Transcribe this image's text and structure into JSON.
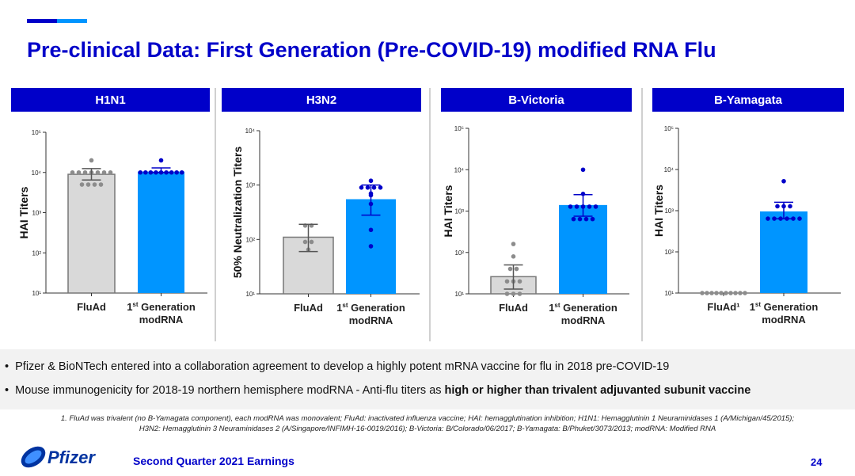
{
  "title": "Pre-clinical Data: First Generation (Pre-COVID-19) modified RNA Flu",
  "colors": {
    "brand": "#0000c9",
    "accent": "#0095ff",
    "fluad_bar": "#d9d9d9",
    "fluad_dot": "#8c8c8c",
    "modrna_dot": "#0000c9"
  },
  "chart_data": [
    {
      "type": "bar",
      "title": "H1N1",
      "ylabel": "HAI Titers",
      "yscale": "log",
      "ylim": [
        10,
        100000
      ],
      "yticks": [
        "10¹",
        "10²",
        "10³",
        "10⁴",
        "10⁵"
      ],
      "categories": [
        "FluAd",
        "1st Generation modRNA"
      ],
      "bars": [
        {
          "name": "FluAd",
          "value": 9000,
          "err": [
            6500,
            12500
          ],
          "points": [
            20000,
            10000,
            10000,
            10000,
            10000,
            10000,
            10000,
            10000,
            5000,
            5000,
            5000,
            5000
          ]
        },
        {
          "name": "1st Generation modRNA",
          "value": 10500,
          "err": [
            10000,
            13000
          ],
          "points": [
            20000,
            10000,
            10000,
            10000,
            10000,
            10000,
            10000,
            10000,
            10000,
            10000
          ]
        }
      ]
    },
    {
      "type": "bar",
      "title": "H3N2",
      "ylabel": "50% Neutralization Titers",
      "yscale": "log",
      "ylim": [
        10,
        10000
      ],
      "yticks": [
        "10¹",
        "10²",
        "10³",
        "10⁴"
      ],
      "categories": [
        "FluAd",
        "1st Generation modRNA"
      ],
      "bars": [
        {
          "name": "FluAd",
          "value": 110,
          "err": [
            60,
            190
          ],
          "points": [
            180,
            180,
            90,
            90,
            65
          ]
        },
        {
          "name": "1st Generation modRNA",
          "value": 550,
          "err": [
            280,
            1000
          ],
          "points": [
            1200,
            900,
            900,
            900,
            900,
            700,
            650,
            450,
            150,
            75
          ]
        }
      ]
    },
    {
      "type": "bar",
      "title": "B-Victoria",
      "ylabel": "HAI Titers",
      "yscale": "log",
      "ylim": [
        10,
        100000
      ],
      "yticks": [
        "10¹",
        "10²",
        "10³",
        "10⁴",
        "10⁵"
      ],
      "categories": [
        "FluAd",
        "1st Generation modRNA"
      ],
      "bars": [
        {
          "name": "FluAd",
          "value": 26,
          "err": [
            13,
            50
          ],
          "points": [
            160,
            80,
            40,
            40,
            20,
            20,
            20,
            10,
            10,
            10
          ]
        },
        {
          "name": "1st Generation modRNA",
          "value": 1400,
          "err": [
            750,
            2500
          ],
          "points": [
            10000,
            2600,
            1280,
            1280,
            1280,
            1280,
            1280,
            640,
            640,
            640,
            640
          ]
        }
      ]
    },
    {
      "type": "bar",
      "title": "B-Yamagata",
      "ylabel": "HAI Titers",
      "yscale": "log",
      "ylim": [
        10,
        100000
      ],
      "yticks": [
        "10¹",
        "10²",
        "10³",
        "10⁴",
        "10⁵"
      ],
      "categories": [
        "FluAd¹",
        "1st Generation modRNA"
      ],
      "bars": [
        {
          "name": "FluAd",
          "value": null,
          "err": null,
          "points": [
            10,
            10,
            10,
            10,
            10,
            10,
            10,
            10,
            10,
            10
          ]
        },
        {
          "name": "1st Generation modRNA",
          "value": 960,
          "err": [
            640,
            1600
          ],
          "points": [
            5200,
            1280,
            1280,
            1280,
            640,
            640,
            640,
            640,
            640,
            640
          ]
        }
      ]
    }
  ],
  "xlabels": {
    "fluad": "FluAd",
    "fluad_sup": "FluAd¹",
    "gen_num": "1",
    "gen_sup": "st",
    "gen_rest": " Generation",
    "gen_line2": "modRNA"
  },
  "bullets": [
    {
      "text": "Pfizer & BioNTech entered into a collaboration agreement to develop a highly potent mRNA vaccine for flu in 2018 pre-COVID-19"
    },
    {
      "text": "Mouse immunogenicity for 2018-19 northern hemisphere modRNA - Anti-flu titers as ",
      "bold": "high or higher than trivalent adjuvanted subunit vaccine"
    }
  ],
  "footnote": "1. FluAd was trivalent (no B-Yamagata component), each modRNA was monovalent; FluAd: inactivated influenza vaccine; HAI: hemagglutination inhibition; H1N1: Hemagglutinin 1 Neuraminidases 1 (A/Michigan/45/2015); H3N2: Hemagglutinin 3 Neuraminidases 2 (A/Singapore/INFIMH-16-0019/2016); B-Victoria: B/Colorado/06/2017; B-Yamagata: B/Phuket/3073/2013; modRNA: Modified RNA",
  "footer": {
    "logo": "Pfizer",
    "event": "Second Quarter 2021 Earnings",
    "page": "24"
  }
}
